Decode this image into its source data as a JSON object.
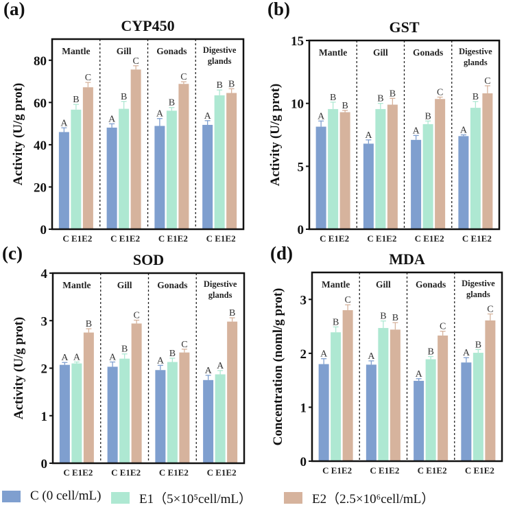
{
  "colors": {
    "C": "#7f9fcf",
    "E1": "#aee8d2",
    "E2": "#d6b39d"
  },
  "legend": [
    {
      "key": "C",
      "label": "C (0 cell/mL)"
    },
    {
      "key": "E1",
      "label": "E1（5×10⁵cell/mL）"
    },
    {
      "key": "E2",
      "label": "E2（2.5×10⁶cell/mL）"
    }
  ],
  "chart_data": [
    {
      "type": "bar",
      "panel": "(a)",
      "title": "CYP450",
      "ylabel": "Activity (U/g prot)",
      "ylim": [
        0,
        90
      ],
      "yticks": [
        0,
        20,
        40,
        60,
        80
      ],
      "grid": false,
      "groups": [
        "Mantle",
        "Gill",
        "Gonads",
        "Digestive glands"
      ],
      "categories": [
        "C",
        "E1",
        "E2"
      ],
      "values": [
        [
          46.0,
          56.6,
          67.2
        ],
        [
          48.1,
          57.0,
          75.6
        ],
        [
          48.9,
          56.1,
          68.8
        ],
        [
          49.4,
          63.4,
          64.5
        ]
      ],
      "errors": [
        [
          2.0,
          2.5,
          2.3
        ],
        [
          1.8,
          3.5,
          1.8
        ],
        [
          3.5,
          1.5,
          1.0
        ],
        [
          2.0,
          2.5,
          2.0
        ]
      ],
      "letters": [
        [
          "A",
          "B",
          "C"
        ],
        [
          "A",
          "B",
          "C"
        ],
        [
          "A",
          "B",
          "C"
        ],
        [
          "A",
          "B",
          "B"
        ]
      ]
    },
    {
      "type": "bar",
      "panel": "(b)",
      "title": "GST",
      "ylabel": "Activity (U/g prot)",
      "ylim": [
        0,
        15
      ],
      "yticks": [
        0,
        5,
        10,
        15
      ],
      "grid": false,
      "groups": [
        "Mantle",
        "Gill",
        "Gonads",
        "Digestive glands"
      ],
      "categories": [
        "C",
        "E1",
        "E2"
      ],
      "values": [
        [
          8.15,
          9.55,
          9.3
        ],
        [
          6.8,
          9.55,
          9.9
        ],
        [
          7.1,
          8.35,
          10.35
        ],
        [
          7.4,
          9.65,
          10.8
        ]
      ],
      "errors": [
        [
          0.45,
          0.55,
          0.15
        ],
        [
          0.3,
          0.45,
          0.5
        ],
        [
          0.35,
          0.25,
          0.15
        ],
        [
          0.1,
          0.5,
          0.6
        ]
      ],
      "letters": [
        [
          "A",
          "B",
          "B"
        ],
        [
          "A",
          "B",
          "B"
        ],
        [
          "A",
          "B",
          "C"
        ],
        [
          "A",
          "B",
          "C"
        ]
      ]
    },
    {
      "type": "bar",
      "panel": "(c)",
      "title": "SOD",
      "ylabel": "Activity (U/g prot)",
      "ylim": [
        0,
        4
      ],
      "yticks": [
        0,
        1,
        2,
        3,
        4
      ],
      "grid": false,
      "groups": [
        "Mantle",
        "Gill",
        "Gonads",
        "Digestive glands"
      ],
      "categories": [
        "C",
        "E1",
        "E2"
      ],
      "values": [
        [
          2.07,
          2.1,
          2.75
        ],
        [
          2.03,
          2.2,
          2.94
        ],
        [
          1.96,
          2.13,
          2.33
        ],
        [
          1.75,
          1.87,
          2.98
        ]
      ],
      "errors": [
        [
          0.05,
          0.03,
          0.08
        ],
        [
          0.1,
          0.1,
          0.07
        ],
        [
          0.1,
          0.08,
          0.07
        ],
        [
          0.1,
          0.08,
          0.08
        ]
      ],
      "letters": [
        [
          "A",
          "A",
          "B"
        ],
        [
          "A",
          "B",
          "C"
        ],
        [
          "A",
          "B",
          "C"
        ],
        [
          "A",
          "A",
          "B"
        ]
      ]
    },
    {
      "type": "bar",
      "panel": "(d)",
      "title": "MDA",
      "ylabel": "Concentration (noml/g prot)",
      "ylim": [
        0,
        3.5
      ],
      "yticks": [
        0,
        1,
        2,
        3
      ],
      "grid": false,
      "groups": [
        "Mantle",
        "Gill",
        "Gonads",
        "Digestive glands"
      ],
      "categories": [
        "C",
        "E1",
        "E2"
      ],
      "values": [
        [
          1.8,
          2.39,
          2.8
        ],
        [
          1.79,
          2.47,
          2.44
        ],
        [
          1.49,
          1.89,
          2.33
        ],
        [
          1.83,
          2.01,
          2.61
        ]
      ],
      "errors": [
        [
          0.1,
          0.1,
          0.1
        ],
        [
          0.07,
          0.13,
          0.13
        ],
        [
          0.04,
          0.05,
          0.08
        ],
        [
          0.09,
          0.06,
          0.12
        ]
      ],
      "letters": [
        [
          "A",
          "B",
          "C"
        ],
        [
          "A",
          "B",
          "B"
        ],
        [
          "A",
          "B",
          "C"
        ],
        [
          "A",
          "B",
          "C"
        ]
      ]
    }
  ]
}
